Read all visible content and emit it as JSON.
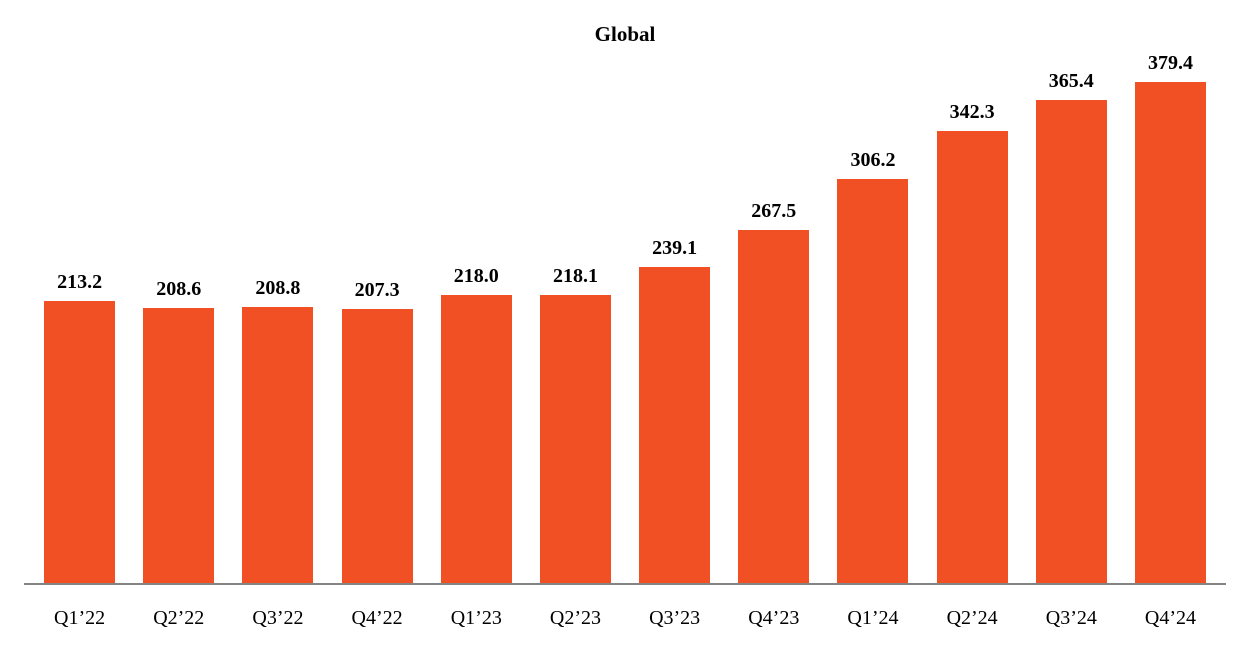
{
  "title": "Global",
  "colors": {
    "bar": "#F05023",
    "axis_line": "#848484",
    "text": "#000000",
    "background": "#FFFFFF"
  },
  "chart_data": {
    "type": "bar",
    "title": "Global",
    "categories": [
      "Q1’22",
      "Q2’22",
      "Q3’22",
      "Q4’22",
      "Q1’23",
      "Q2’23",
      "Q3’23",
      "Q4’23",
      "Q1’24",
      "Q2’24",
      "Q3’24",
      "Q4’24"
    ],
    "values": [
      213.2,
      208.6,
      208.8,
      207.3,
      218.0,
      218.1,
      239.1,
      267.5,
      306.2,
      342.3,
      365.4,
      379.4
    ],
    "value_labels": [
      "213.2",
      "208.6",
      "208.8",
      "207.3",
      "218.0",
      "218.1",
      "239.1",
      "267.5",
      "306.2",
      "342.3",
      "365.4",
      "379.4"
    ],
    "xlabel": "",
    "ylabel": "",
    "ylim": [
      0,
      400
    ],
    "grid": false,
    "legend": false,
    "bar_color": "#F05023",
    "value_labels_position": "above-bars",
    "y_axis_visible": false,
    "x_axis_line_visible": true
  }
}
